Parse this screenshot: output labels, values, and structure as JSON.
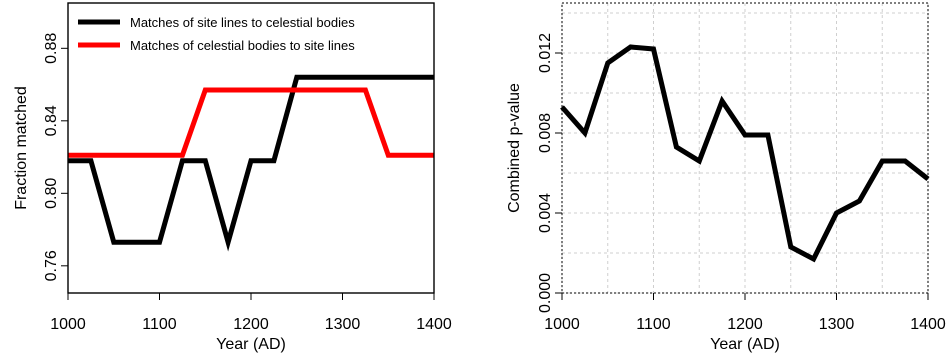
{
  "chart_data": [
    {
      "type": "line",
      "xlabel": "Year (AD)",
      "ylabel": "Fraction matched",
      "xlim": [
        1000,
        1400
      ],
      "ylim": [
        0.745,
        0.905
      ],
      "x_ticks": [
        1000,
        1100,
        1200,
        1300,
        1400
      ],
      "x_tick_labels": [
        "1000",
        "1100",
        "1200",
        "1300",
        "1400"
      ],
      "y_ticks": [
        0.76,
        0.8,
        0.84,
        0.88
      ],
      "y_tick_labels": [
        "0.76",
        "0.80",
        "0.84",
        "0.88"
      ],
      "grid": false,
      "legend_position": "top-left",
      "series": [
        {
          "name": "Matches of site lines to celestial bodies",
          "color": "#000000",
          "points": [
            [
              1000,
              0.818
            ],
            [
              1025,
              0.818
            ],
            [
              1050,
              0.773
            ],
            [
              1075,
              0.773
            ],
            [
              1100,
              0.773
            ],
            [
              1125,
              0.818
            ],
            [
              1150,
              0.818
            ],
            [
              1175,
              0.773
            ],
            [
              1200,
              0.818
            ],
            [
              1225,
              0.818
            ],
            [
              1250,
              0.864
            ],
            [
              1275,
              0.864
            ],
            [
              1300,
              0.864
            ],
            [
              1325,
              0.864
            ],
            [
              1350,
              0.864
            ],
            [
              1375,
              0.864
            ],
            [
              1400,
              0.864
            ]
          ]
        },
        {
          "name": "Matches of celestial bodies to site lines",
          "color": "#ff0000",
          "points": [
            [
              1000,
              0.821
            ],
            [
              1025,
              0.821
            ],
            [
              1050,
              0.821
            ],
            [
              1075,
              0.821
            ],
            [
              1100,
              0.821
            ],
            [
              1125,
              0.821
            ],
            [
              1150,
              0.857
            ],
            [
              1175,
              0.857
            ],
            [
              1200,
              0.857
            ],
            [
              1225,
              0.857
            ],
            [
              1250,
              0.857
            ],
            [
              1275,
              0.857
            ],
            [
              1300,
              0.857
            ],
            [
              1325,
              0.857
            ],
            [
              1350,
              0.821
            ],
            [
              1375,
              0.821
            ],
            [
              1400,
              0.821
            ]
          ]
        }
      ]
    },
    {
      "type": "line",
      "xlabel": "Year (AD)",
      "ylabel": "Combined p-value",
      "xlim": [
        1000,
        1400
      ],
      "ylim": [
        0.0,
        0.0145
      ],
      "x_ticks": [
        1000,
        1100,
        1200,
        1300,
        1400
      ],
      "x_tick_labels": [
        "1000",
        "1100",
        "1200",
        "1300",
        "1400"
      ],
      "y_ticks": [
        0.0,
        0.004,
        0.008,
        0.012
      ],
      "y_tick_labels": [
        "0.000",
        "0.004",
        "0.008",
        "0.012"
      ],
      "grid": true,
      "series": [
        {
          "color": "#000000",
          "points": [
            [
              1000,
              0.0093
            ],
            [
              1025,
              0.008
            ],
            [
              1050,
              0.0115
            ],
            [
              1075,
              0.0123
            ],
            [
              1100,
              0.0122
            ],
            [
              1125,
              0.0073
            ],
            [
              1150,
              0.0066
            ],
            [
              1175,
              0.0096
            ],
            [
              1200,
              0.0079
            ],
            [
              1225,
              0.0079
            ],
            [
              1250,
              0.0023
            ],
            [
              1275,
              0.0017
            ],
            [
              1300,
              0.004
            ],
            [
              1325,
              0.0046
            ],
            [
              1350,
              0.0066
            ],
            [
              1375,
              0.0066
            ],
            [
              1400,
              0.0057
            ]
          ]
        }
      ]
    }
  ]
}
